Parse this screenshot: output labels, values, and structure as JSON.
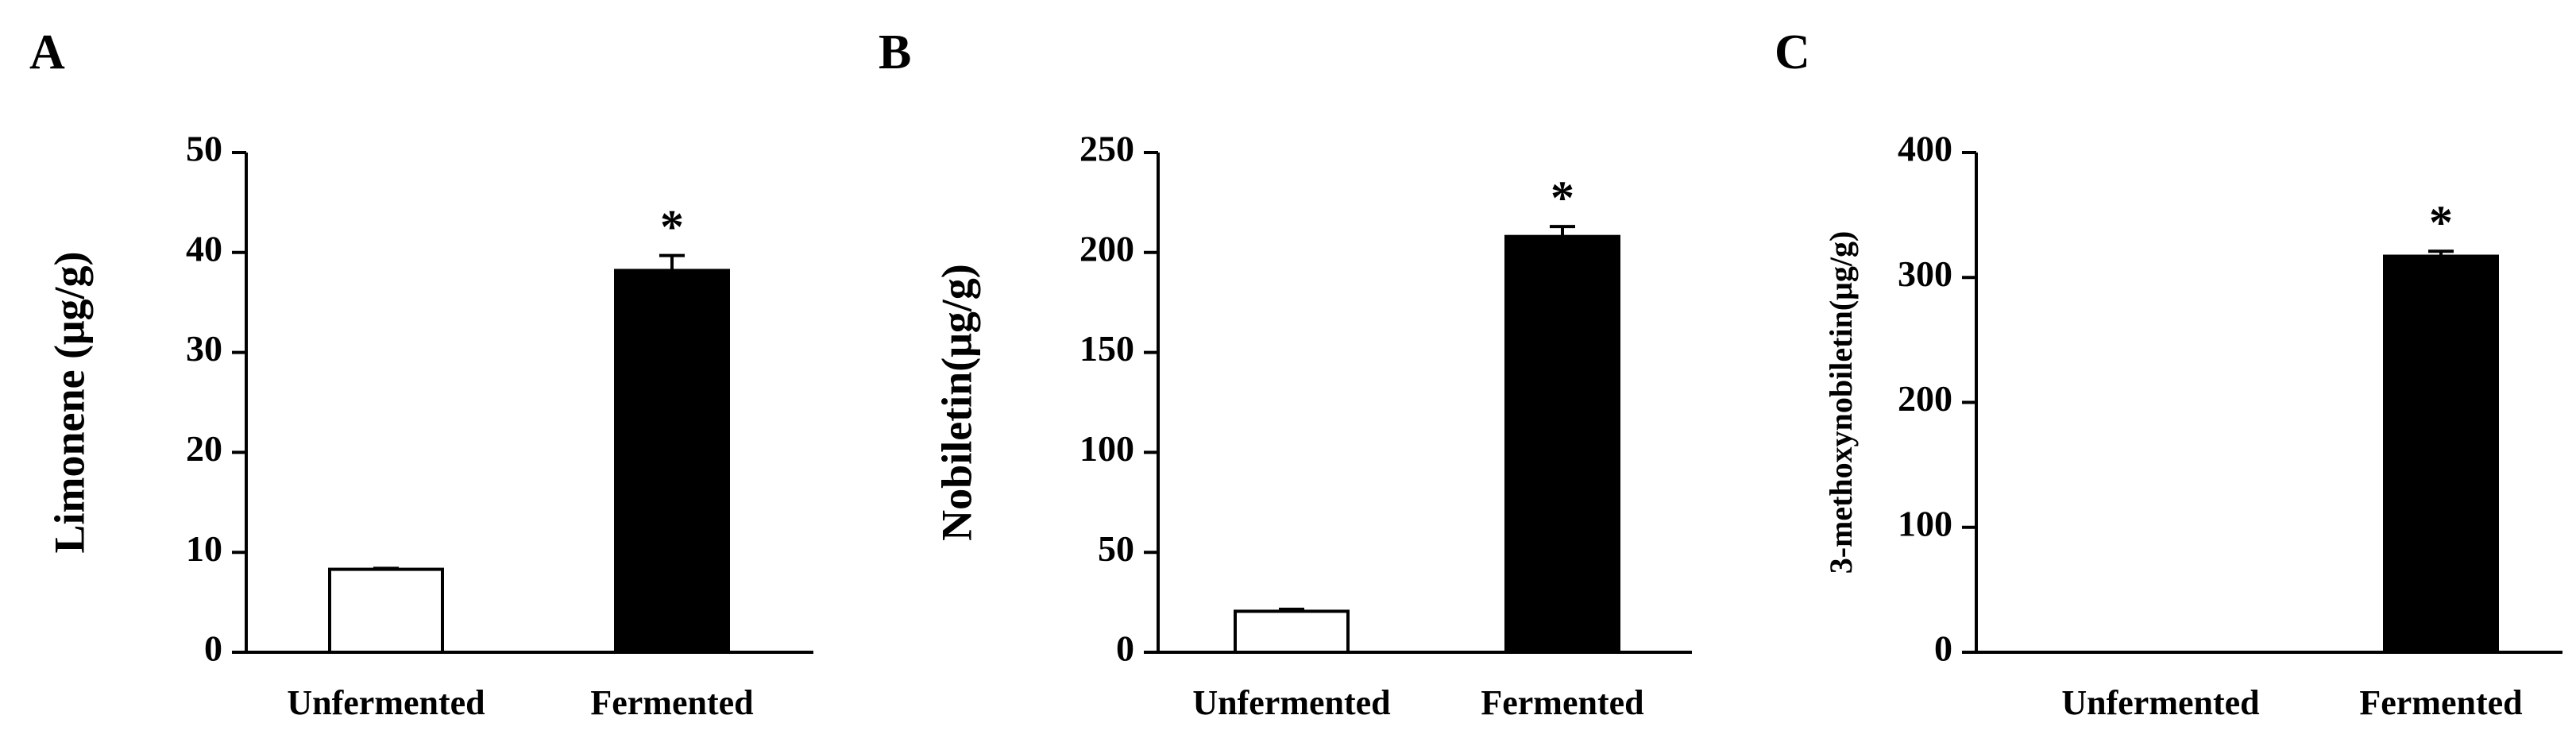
{
  "chart_data": [
    {
      "type": "bar",
      "panel_label": "A",
      "ylabel": "Limonene (μg/g)",
      "categories": [
        "Unfermented",
        "Fermented"
      ],
      "values": [
        8.3,
        38.2
      ],
      "errors": [
        0.1,
        1.5
      ],
      "colors": [
        "#ffffff",
        "#000000"
      ],
      "annotation": "*",
      "ylim": [
        0,
        50
      ],
      "yticks": [
        0,
        10,
        20,
        30,
        40,
        50
      ]
    },
    {
      "type": "bar",
      "panel_label": "B",
      "ylabel": "Nobiletin(μg/g)",
      "categories": [
        "Unfermented",
        "Fermented"
      ],
      "values": [
        20.5,
        208
      ],
      "errors": [
        1,
        5
      ],
      "colors": [
        "#ffffff",
        "#000000"
      ],
      "annotation": "*",
      "ylim": [
        0,
        250
      ],
      "yticks": [
        0,
        50,
        100,
        150,
        200,
        250
      ]
    },
    {
      "type": "bar",
      "panel_label": "C",
      "ylabel": "3-methoxynobiletin(μg/g)",
      "categories": [
        "Unfermented",
        "Fermented"
      ],
      "values": [
        0,
        317
      ],
      "errors": [
        0,
        4
      ],
      "colors": [
        "#ffffff",
        "#000000"
      ],
      "annotation": "*",
      "ylim": [
        0,
        400
      ],
      "yticks": [
        0,
        100,
        200,
        300,
        400
      ]
    }
  ]
}
